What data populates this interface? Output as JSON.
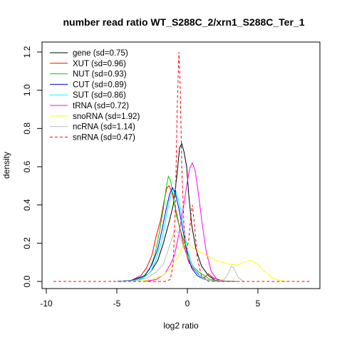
{
  "chart_data": {
    "type": "line",
    "title": "number read ratio WT_S288C_2/xrn1_S288C_Ter_1",
    "xlabel": "log2 ratio",
    "ylabel": "density",
    "xlim": [
      -10,
      9
    ],
    "ylim": [
      0,
      1.25
    ],
    "xticks": [
      -10,
      -5,
      0,
      5
    ],
    "yticks": [
      0.0,
      0.2,
      0.4,
      0.6,
      0.8,
      1.0,
      1.2
    ],
    "xtick_labels": [
      "-10",
      "-5",
      "0",
      "5"
    ],
    "ytick_labels": [
      "0.0",
      "0.2",
      "0.4",
      "0.6",
      "0.8",
      "1.0",
      "1.2"
    ],
    "grid": false,
    "legend_position": "top-left",
    "series": [
      {
        "name": "gene (sd=0.75)",
        "color": "#000000",
        "dash": "solid",
        "points": [
          [
            -5.0,
            0.0
          ],
          [
            -4.0,
            0.004
          ],
          [
            -3.2,
            0.015
          ],
          [
            -2.6,
            0.05
          ],
          [
            -2.1,
            0.11
          ],
          [
            -1.7,
            0.2
          ],
          [
            -1.3,
            0.31
          ],
          [
            -1.0,
            0.4
          ],
          [
            -0.75,
            0.55
          ],
          [
            -0.55,
            0.7
          ],
          [
            -0.4,
            0.72
          ],
          [
            -0.25,
            0.68
          ],
          [
            -0.05,
            0.6
          ],
          [
            0.1,
            0.45
          ],
          [
            0.3,
            0.3
          ],
          [
            0.6,
            0.17
          ],
          [
            1.0,
            0.08
          ],
          [
            1.5,
            0.03
          ],
          [
            2.0,
            0.005
          ],
          [
            3.0,
            0.0
          ]
        ]
      },
      {
        "name": "XUT (sd=0.96)",
        "color": "#ff0000",
        "dash": "solid",
        "points": [
          [
            -5.0,
            0.0
          ],
          [
            -4.0,
            0.005
          ],
          [
            -3.3,
            0.03
          ],
          [
            -2.9,
            0.07
          ],
          [
            -2.5,
            0.14
          ],
          [
            -2.2,
            0.24
          ],
          [
            -1.9,
            0.32
          ],
          [
            -1.65,
            0.42
          ],
          [
            -1.45,
            0.49
          ],
          [
            -1.3,
            0.5
          ],
          [
            -1.1,
            0.47
          ],
          [
            -0.9,
            0.4
          ],
          [
            -0.6,
            0.3
          ],
          [
            -0.3,
            0.2
          ],
          [
            0.1,
            0.1
          ],
          [
            0.5,
            0.06
          ],
          [
            0.9,
            0.03
          ],
          [
            1.2,
            0.02
          ],
          [
            1.5,
            0.04
          ],
          [
            1.8,
            0.02
          ],
          [
            2.5,
            0.003
          ],
          [
            3.5,
            0.0
          ]
        ]
      },
      {
        "name": "NUT (sd=0.93)",
        "color": "#00cc00",
        "dash": "solid",
        "points": [
          [
            -5.0,
            0.0
          ],
          [
            -4.0,
            0.004
          ],
          [
            -3.2,
            0.02
          ],
          [
            -2.7,
            0.06
          ],
          [
            -2.3,
            0.14
          ],
          [
            -2.0,
            0.25
          ],
          [
            -1.7,
            0.38
          ],
          [
            -1.5,
            0.49
          ],
          [
            -1.35,
            0.55
          ],
          [
            -1.2,
            0.53
          ],
          [
            -1.0,
            0.45
          ],
          [
            -0.8,
            0.35
          ],
          [
            -0.5,
            0.27
          ],
          [
            -0.2,
            0.2
          ],
          [
            0.1,
            0.13
          ],
          [
            0.4,
            0.08
          ],
          [
            0.8,
            0.05
          ],
          [
            1.2,
            0.03
          ],
          [
            1.6,
            0.01
          ],
          [
            2.5,
            0.002
          ],
          [
            3.5,
            0.0
          ]
        ]
      },
      {
        "name": "CUT (sd=0.89)",
        "color": "#0000ff",
        "dash": "solid",
        "points": [
          [
            -5.0,
            0.0
          ],
          [
            -4.0,
            0.005
          ],
          [
            -3.0,
            0.03
          ],
          [
            -2.5,
            0.09
          ],
          [
            -2.1,
            0.17
          ],
          [
            -1.8,
            0.27
          ],
          [
            -1.5,
            0.38
          ],
          [
            -1.25,
            0.46
          ],
          [
            -1.05,
            0.49
          ],
          [
            -0.85,
            0.46
          ],
          [
            -0.6,
            0.38
          ],
          [
            -0.3,
            0.26
          ],
          [
            0.0,
            0.14
          ],
          [
            0.3,
            0.07
          ],
          [
            0.7,
            0.03
          ],
          [
            1.2,
            0.01
          ],
          [
            2.0,
            0.002
          ],
          [
            3.0,
            0.0
          ]
        ]
      },
      {
        "name": "SUT (sd=0.86)",
        "color": "#00ffff",
        "dash": "solid",
        "points": [
          [
            -5.0,
            0.0
          ],
          [
            -4.0,
            0.003
          ],
          [
            -3.2,
            0.015
          ],
          [
            -2.6,
            0.05
          ],
          [
            -2.2,
            0.12
          ],
          [
            -1.8,
            0.22
          ],
          [
            -1.5,
            0.34
          ],
          [
            -1.25,
            0.43
          ],
          [
            -1.05,
            0.48
          ],
          [
            -0.85,
            0.48
          ],
          [
            -0.6,
            0.42
          ],
          [
            -0.3,
            0.3
          ],
          [
            0.0,
            0.17
          ],
          [
            0.3,
            0.09
          ],
          [
            0.7,
            0.04
          ],
          [
            1.2,
            0.01
          ],
          [
            2.0,
            0.002
          ],
          [
            3.0,
            0.0
          ]
        ]
      },
      {
        "name": "tRNA (sd=0.72)",
        "color": "#ff00ff",
        "dash": "solid",
        "points": [
          [
            -3.0,
            0.0
          ],
          [
            -2.2,
            0.01
          ],
          [
            -1.6,
            0.04
          ],
          [
            -1.2,
            0.09
          ],
          [
            -0.9,
            0.14
          ],
          [
            -0.6,
            0.25
          ],
          [
            -0.3,
            0.38
          ],
          [
            -0.05,
            0.5
          ],
          [
            0.15,
            0.59
          ],
          [
            0.35,
            0.62
          ],
          [
            0.55,
            0.58
          ],
          [
            0.8,
            0.45
          ],
          [
            1.05,
            0.3
          ],
          [
            1.35,
            0.15
          ],
          [
            1.7,
            0.05
          ],
          [
            2.1,
            0.01
          ],
          [
            2.5,
            0.0
          ]
        ]
      },
      {
        "name": "snoRNA (sd=1.92)",
        "color": "#ffff00",
        "dash": "solid",
        "points": [
          [
            -3.5,
            0.0
          ],
          [
            -2.5,
            0.01
          ],
          [
            -1.8,
            0.03
          ],
          [
            -1.3,
            0.06
          ],
          [
            -0.9,
            0.1
          ],
          [
            -0.6,
            0.14
          ],
          [
            -0.3,
            0.19
          ],
          [
            0.0,
            0.2
          ],
          [
            0.5,
            0.17
          ],
          [
            1.0,
            0.15
          ],
          [
            1.5,
            0.13
          ],
          [
            2.0,
            0.11
          ],
          [
            2.5,
            0.1
          ],
          [
            3.0,
            0.09
          ],
          [
            3.5,
            0.085
          ],
          [
            4.0,
            0.1
          ],
          [
            4.5,
            0.11
          ],
          [
            5.0,
            0.09
          ],
          [
            5.5,
            0.05
          ],
          [
            6.0,
            0.02
          ],
          [
            6.5,
            0.005
          ],
          [
            7.0,
            0.0
          ]
        ]
      },
      {
        "name": "ncRNA (sd=1.14)",
        "color": "#bebebe",
        "dash": "solid",
        "points": [
          [
            -4.5,
            0.0
          ],
          [
            -3.5,
            0.005
          ],
          [
            -2.8,
            0.02
          ],
          [
            -2.2,
            0.05
          ],
          [
            -1.7,
            0.09
          ],
          [
            -1.2,
            0.2
          ],
          [
            -0.9,
            0.27
          ],
          [
            -0.6,
            0.25
          ],
          [
            -0.3,
            0.18
          ],
          [
            0.1,
            0.12
          ],
          [
            0.5,
            0.07
          ],
          [
            0.9,
            0.03
          ],
          [
            1.4,
            0.01
          ],
          [
            2.0,
            0.0
          ],
          [
            2.6,
            0.01
          ],
          [
            2.9,
            0.04
          ],
          [
            3.1,
            0.08
          ],
          [
            3.3,
            0.07
          ],
          [
            3.6,
            0.02
          ],
          [
            4.0,
            0.0
          ]
        ]
      },
      {
        "name": "snRNA (sd=0.47)",
        "color": "#ff0000",
        "dash": "dashed",
        "points": [
          [
            -9.5,
            0.0
          ],
          [
            -1.6,
            0.0
          ],
          [
            -1.2,
            0.01
          ],
          [
            -1.0,
            0.1
          ],
          [
            -0.85,
            0.4
          ],
          [
            -0.72,
            0.9
          ],
          [
            -0.6,
            1.2
          ],
          [
            -0.5,
            1.0
          ],
          [
            -0.4,
            0.6
          ],
          [
            -0.25,
            0.3
          ],
          [
            -0.1,
            0.15
          ],
          [
            0.1,
            0.22
          ],
          [
            0.25,
            0.35
          ],
          [
            0.35,
            0.4
          ],
          [
            0.5,
            0.3
          ],
          [
            0.7,
            0.12
          ],
          [
            1.0,
            0.03
          ],
          [
            1.5,
            0.0
          ],
          [
            8.7,
            0.0
          ]
        ]
      }
    ]
  }
}
